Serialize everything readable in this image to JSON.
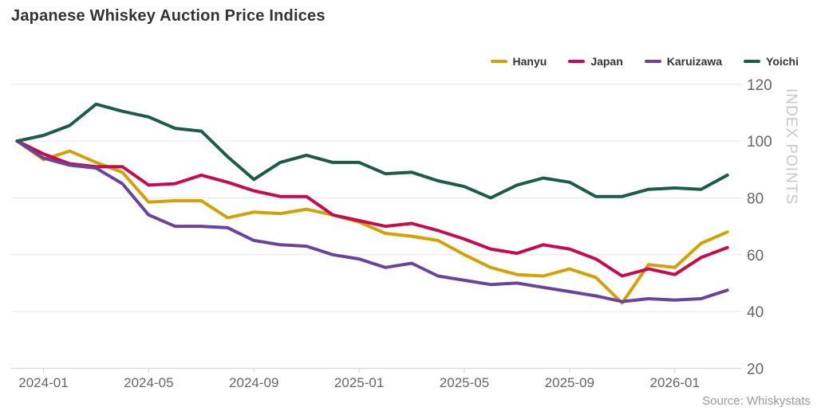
{
  "header": {
    "title": "Japanese Whiskey Auction Price Indices"
  },
  "footer": {
    "source": "Source: Whiskystats"
  },
  "colors": {
    "grid_line": "#e6e6e6",
    "axis_line": "#ccd6eb",
    "tick_label": "#666666",
    "axis_title": "#c7c7c7",
    "title_text": "#333333",
    "source_text": "#9a9a9a"
  },
  "chart_data": {
    "type": "line",
    "title": "Japanese Whiskey Auction Price Indices",
    "ylabel": "INDEX POINTS",
    "xlabel": "",
    "ylim": [
      20,
      120
    ],
    "grid": "horizontal",
    "legend_position": "top-right",
    "x": [
      "2023-12",
      "2024-01",
      "2024-02",
      "2024-03",
      "2024-04",
      "2024-05",
      "2024-06",
      "2024-07",
      "2024-08",
      "2024-09",
      "2024-10",
      "2024-11",
      "2024-12",
      "2025-01",
      "2025-02",
      "2025-03",
      "2025-04",
      "2025-05",
      "2025-06",
      "2025-07",
      "2025-08",
      "2025-09",
      "2025-10",
      "2025-11",
      "2025-12",
      "2026-01",
      "2026-02",
      "2026-03"
    ],
    "y_ticks": [
      120,
      100,
      80,
      60,
      40,
      20
    ],
    "x_tick_labels": [
      "2024-01",
      "2024-05",
      "2024-09",
      "2025-01",
      "2025-05",
      "2025-09",
      "2026-01"
    ],
    "x_tick_month_indices": [
      1,
      5,
      9,
      13,
      17,
      21,
      25
    ],
    "series": [
      {
        "name": "Hanyu",
        "color": "#D2A106",
        "values": [
          100,
          93.5,
          96.5,
          92.5,
          89,
          78.5,
          79,
          79,
          73,
          75,
          74.5,
          76,
          74,
          71.5,
          67.5,
          66.5,
          65,
          60,
          55.5,
          53,
          52.5,
          55,
          52,
          43,
          56.5,
          55.5,
          64,
          68
        ]
      },
      {
        "name": "Japan",
        "color": "#C9094E",
        "values": [
          100,
          95.5,
          92,
          91,
          91,
          84.5,
          85,
          88,
          85.5,
          82.5,
          80.5,
          80.5,
          74,
          72,
          70,
          71,
          68.5,
          65.5,
          62,
          60.5,
          63.5,
          62,
          58.5,
          52.5,
          55,
          53,
          59,
          62.5
        ]
      },
      {
        "name": "Karuizawa",
        "color": "#6A449B",
        "values": [
          100,
          94,
          91.5,
          90.5,
          85,
          74,
          70,
          70,
          69.5,
          65,
          63.5,
          63,
          60,
          58.5,
          55.5,
          57,
          52.5,
          51,
          49.5,
          50,
          48.5,
          47,
          45.5,
          43.5,
          44.5,
          44,
          44.5,
          47.5
        ]
      },
      {
        "name": "Yoichi",
        "color": "#1A5C48",
        "values": [
          100,
          102,
          105.5,
          113,
          110.5,
          108.5,
          104.5,
          103.5,
          94.5,
          86.5,
          92.5,
          95,
          92.5,
          92.5,
          88.5,
          89,
          86,
          84,
          80,
          84.5,
          87,
          85.5,
          80.5,
          80.5,
          83,
          83.5,
          83,
          88
        ]
      }
    ]
  }
}
